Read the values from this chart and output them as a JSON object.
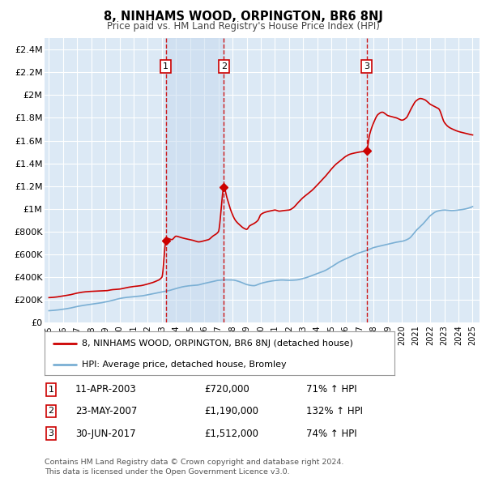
{
  "title": "8, NINHAMS WOOD, ORPINGTON, BR6 8NJ",
  "subtitle": "Price paid vs. HM Land Registry's House Price Index (HPI)",
  "bg_color": "#dce9f5",
  "grid_color": "#ffffff",
  "ylim": [
    0,
    2500000
  ],
  "yticks": [
    0,
    200000,
    400000,
    600000,
    800000,
    1000000,
    1200000,
    1400000,
    1600000,
    1800000,
    2000000,
    2200000,
    2400000
  ],
  "ytick_labels": [
    "£0",
    "£200K",
    "£400K",
    "£600K",
    "£800K",
    "£1M",
    "£1.2M",
    "£1.4M",
    "£1.6M",
    "£1.8M",
    "£2M",
    "£2.2M",
    "£2.4M"
  ],
  "xlim_start": 1994.7,
  "xlim_end": 2025.5,
  "sale_color": "#cc0000",
  "hpi_color": "#7aafd4",
  "shade_color": "#c5d9ee",
  "sale_label": "8, NINHAMS WOOD, ORPINGTON, BR6 8NJ (detached house)",
  "hpi_label": "HPI: Average price, detached house, Bromley",
  "purchases": [
    {
      "num": 1,
      "date": "11-APR-2003",
      "price": 720000,
      "year": 2003.28,
      "pct": "71%",
      "dir": "↑"
    },
    {
      "num": 2,
      "date": "23-MAY-2007",
      "price": 1190000,
      "year": 2007.39,
      "pct": "132%",
      "dir": "↑"
    },
    {
      "num": 3,
      "date": "30-JUN-2017",
      "price": 1512000,
      "year": 2017.5,
      "pct": "74%",
      "dir": "↑"
    }
  ],
  "footer": "Contains HM Land Registry data © Crown copyright and database right 2024.\nThis data is licensed under the Open Government Licence v3.0."
}
